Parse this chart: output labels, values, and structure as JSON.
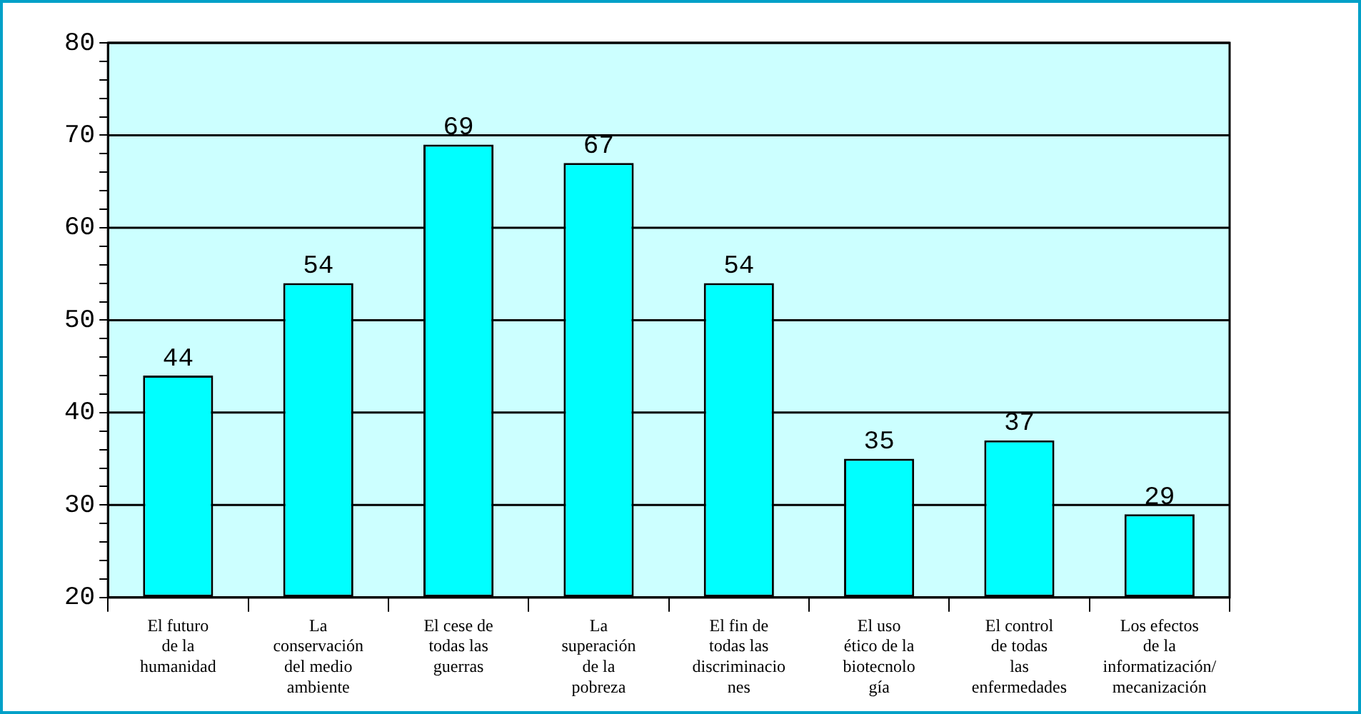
{
  "chart_data": {
    "type": "bar",
    "categories": [
      [
        "El futuro",
        "de la",
        "humanidad"
      ],
      [
        "La",
        "conservación",
        "del medio",
        "ambiente"
      ],
      [
        "El cese de",
        "todas las",
        "guerras"
      ],
      [
        "La",
        "superación",
        "de la",
        "pobreza"
      ],
      [
        "El fin de",
        "todas las",
        "discriminacio",
        "nes"
      ],
      [
        "El uso",
        "ético de la",
        "biotecnolo",
        "gía"
      ],
      [
        "El control",
        "de todas",
        "las",
        "enfermedades"
      ],
      [
        "Los efectos",
        "de la",
        "informatización/",
        "mecanización"
      ]
    ],
    "values": [
      44,
      54,
      69,
      67,
      54,
      35,
      37,
      29
    ],
    "color": "#00ffff",
    "ylim": [
      20,
      80
    ],
    "yticks": [
      20,
      {
        "value": 22,
        "label": null
      },
      {
        "value": 24,
        "label": null
      },
      {
        "value": 26,
        "label": null
      },
      {
        "value": 28,
        "label": null
      },
      30,
      {
        "value": 32,
        "label": null
      },
      {
        "value": 34,
        "label": null
      },
      {
        "value": 36,
        "label": null
      },
      {
        "value": 38,
        "label": null
      },
      40,
      {
        "value": 42,
        "label": null
      },
      {
        "value": 44,
        "label": null
      },
      {
        "value": 46,
        "label": null
      },
      {
        "value": 48,
        "label": null
      },
      50,
      {
        "value": 52,
        "label": null
      },
      {
        "value": 54,
        "label": null
      },
      {
        "value": 56,
        "label": null
      },
      {
        "value": 58,
        "label": null
      },
      60,
      {
        "value": 62,
        "label": null
      },
      {
        "value": 64,
        "label": null
      },
      {
        "value": 66,
        "label": null
      },
      {
        "value": 68,
        "label": null
      },
      70,
      {
        "value": 72,
        "label": null
      },
      {
        "value": 74,
        "label": null
      },
      {
        "value": 76,
        "label": null
      },
      {
        "value": 78,
        "label": null
      },
      80
    ],
    "grid": "y",
    "data_labels": true
  }
}
